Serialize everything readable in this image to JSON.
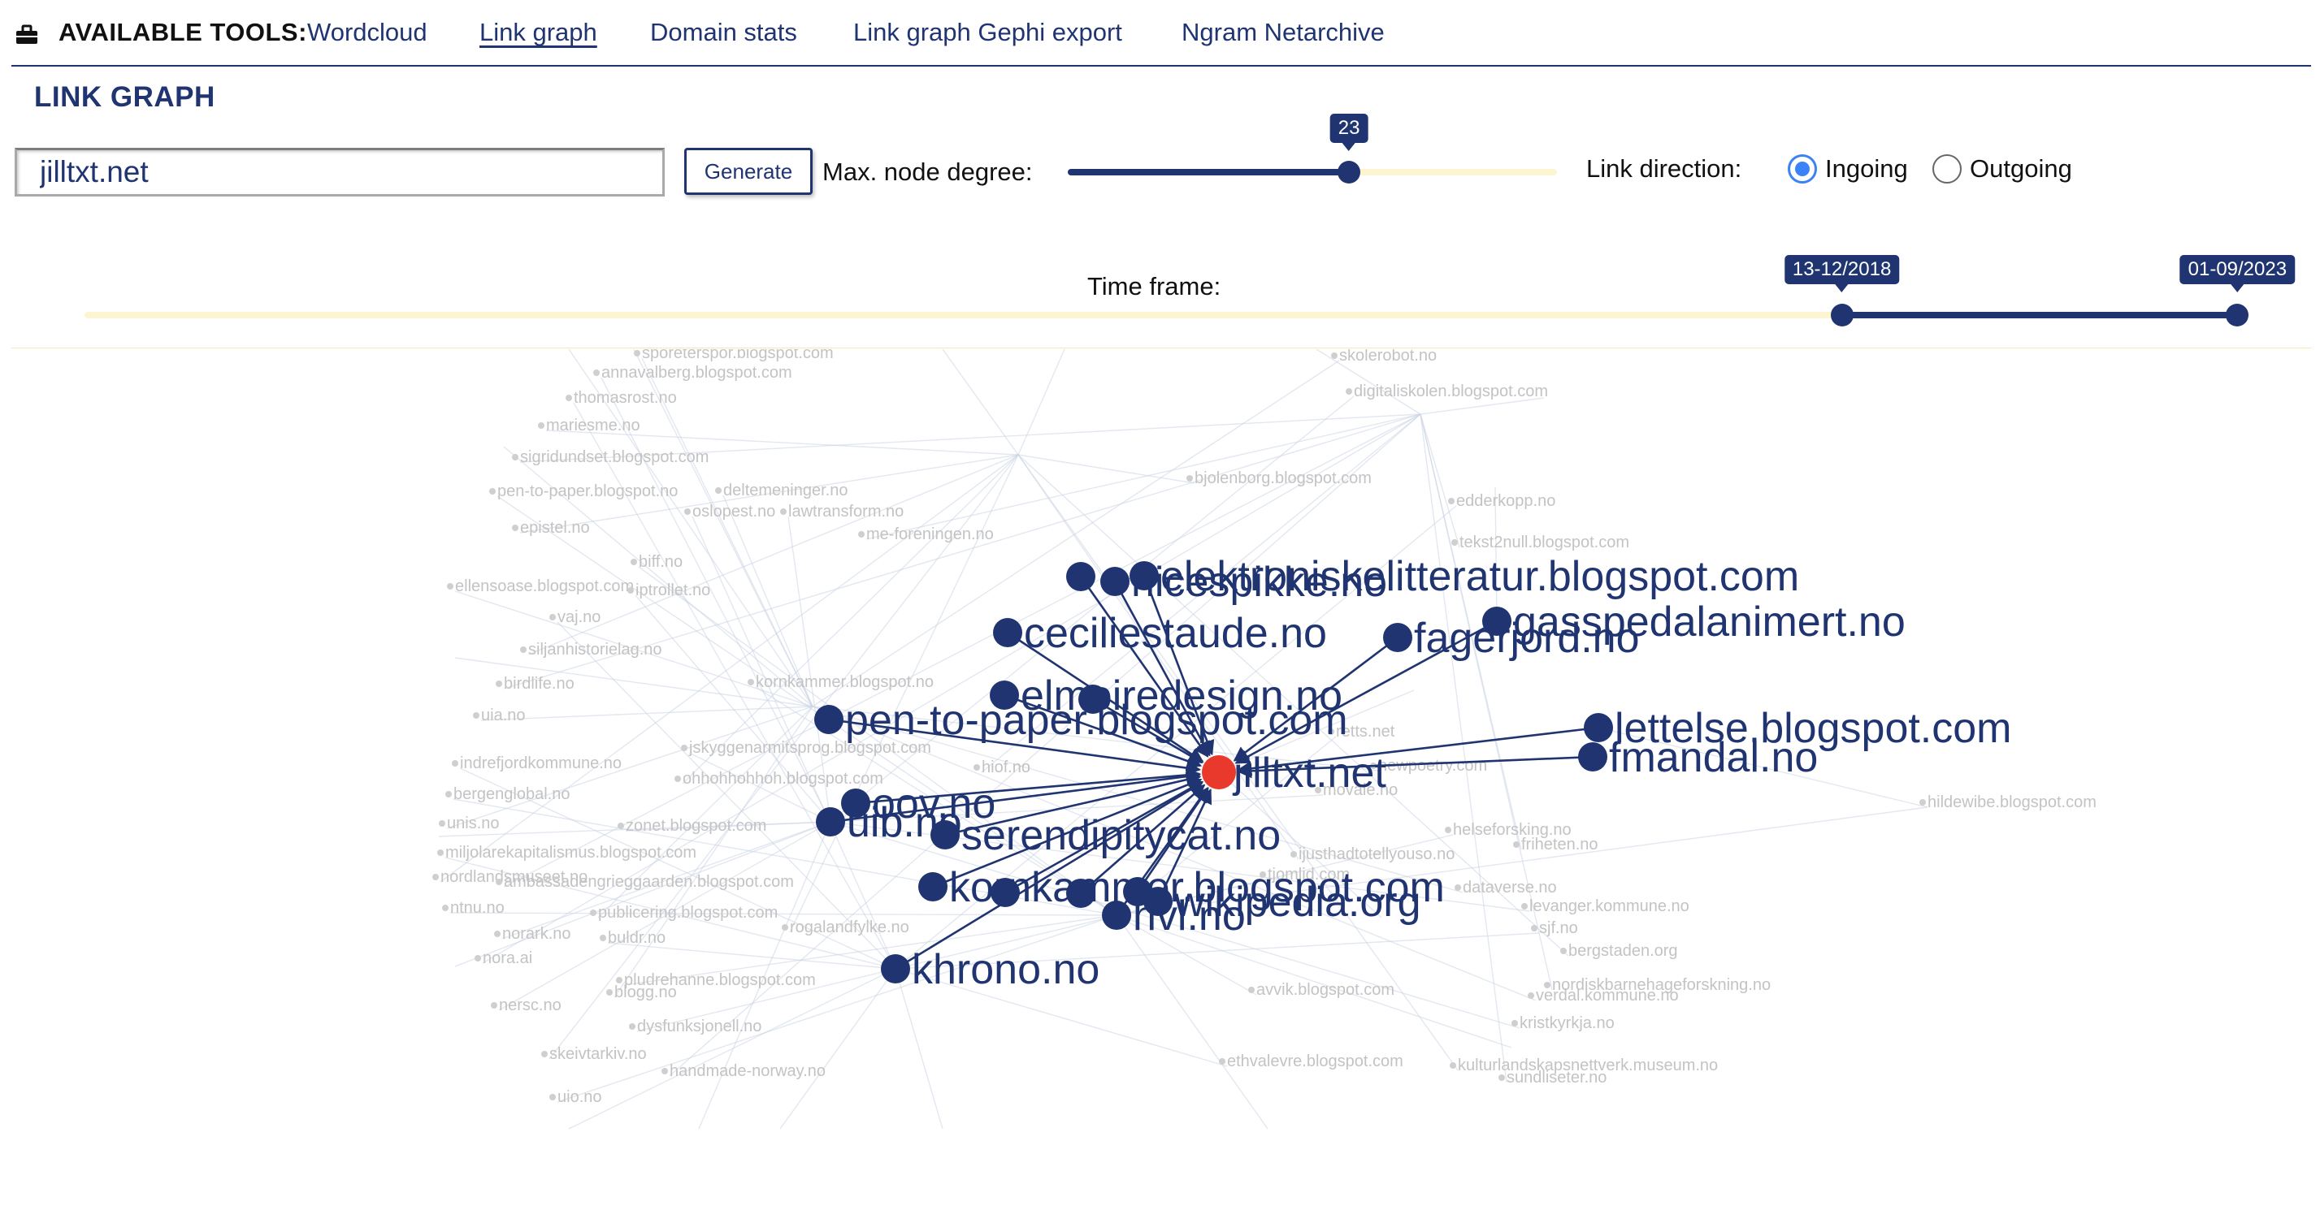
{
  "nav": {
    "tools_label": "AVAILABLE TOOLS:",
    "tools_icon": "toolbox-icon",
    "links": [
      {
        "label": "Wordcloud",
        "active": false
      },
      {
        "label": "Link graph",
        "active": true
      },
      {
        "label": "Domain stats",
        "active": false
      },
      {
        "label": "Link graph Gephi export",
        "active": false
      },
      {
        "label": "Ngram Netarchive",
        "active": false
      }
    ]
  },
  "page_title": "LINK GRAPH",
  "controls": {
    "domain_value": "jilltxt.net",
    "generate_label": "Generate",
    "degree_label": "Max. node degree:",
    "degree_value": "23",
    "degree_fraction": 0.575,
    "direction_label": "Link direction:",
    "directions": [
      {
        "label": "Ingoing",
        "checked": true
      },
      {
        "label": "Outgoing",
        "checked": false
      }
    ]
  },
  "timeframe": {
    "label": "Time frame:",
    "start": "13-12/2018",
    "end": "01-09/2023",
    "start_fraction": 0.813,
    "end_fraction": 0.996
  },
  "graph": {
    "center": "jilltxt.net",
    "ingoing_domains": [
      "elektroniskelitteratur.blogspot.com",
      "nicespikke.no",
      "ceciliestaude.no",
      "gasspedalanimert.no",
      "fagerjord.no",
      "elmoiredesign.no",
      "pen-to-paper.blogspot.com",
      "lettelse.blogspot.com",
      "fmandal.no",
      "oov.no",
      "uib.no",
      "serendipitycat.no",
      "kornkammer.blogspot.com",
      "wikipedia.org",
      "hvl.no",
      "khrono.no"
    ],
    "neighbour_domains": [
      "sporeterspor.blogspot.com",
      "annavalberg.blogspot.com",
      "thomasrost.no",
      "mariesme.no",
      "sigridundset.blogspot.com",
      "pen-to-paper.blogspot.no",
      "deltemeninger.no",
      "lawtransform.no",
      "oslopest.no",
      "epistel.no",
      "me-foreningen.no",
      "biff.no",
      "ellensoase.blogspot.com",
      "iptrollet.no",
      "vaj.no",
      "siljanhistorielag.no",
      "birdlife.no",
      "kornkammer.blogspot.no",
      "uia.no",
      "jskyggenarmitsprog.blogspot.com",
      "indrefjordkommune.no",
      "ohhohhohhoh.blogspot.com",
      "hiof.no",
      "bergenglobal.no",
      "unis.no",
      "zonet.blogspot.com",
      "miljolarekapitalismus.blogspot.com",
      "nordlandsmuseet.no",
      "ambassadengrieggaarden.blogspot.com",
      "ntnu.no",
      "publicering.blogspot.com",
      "norark.no",
      "buldr.no",
      "rogalandfylke.no",
      "nora.ai",
      "pludrehanne.blogspot.com",
      "blogg.no",
      "nersc.no",
      "dysfunksjonell.no",
      "skeivtarkiv.no",
      "handmade-norway.no",
      "uio.no",
      "skolerobot.no",
      "digitaliskolen.blogspot.com",
      "edderkopp.no",
      "bjolenborg.blogspot.com",
      "tekst2null.blogspot.com",
      "retts.net",
      "newpoetry.com",
      "movale.no",
      "helseforsking.no",
      "ijusthadtotellyouso.no",
      "friheten.no",
      "tjomlid.com",
      "dataverse.no",
      "levanger.kommune.no",
      "sjf.no",
      "bergstaden.org",
      "nordiskbarnehageforskning.no",
      "avvik.blogspot.com",
      "verdal.kommune.no",
      "kristkyrkja.no",
      "ethvalevre.blogspot.com",
      "kulturlandskapsnettverk.museum.no",
      "sundliseter.no",
      "hildewibe.blogspot.com"
    ]
  }
}
